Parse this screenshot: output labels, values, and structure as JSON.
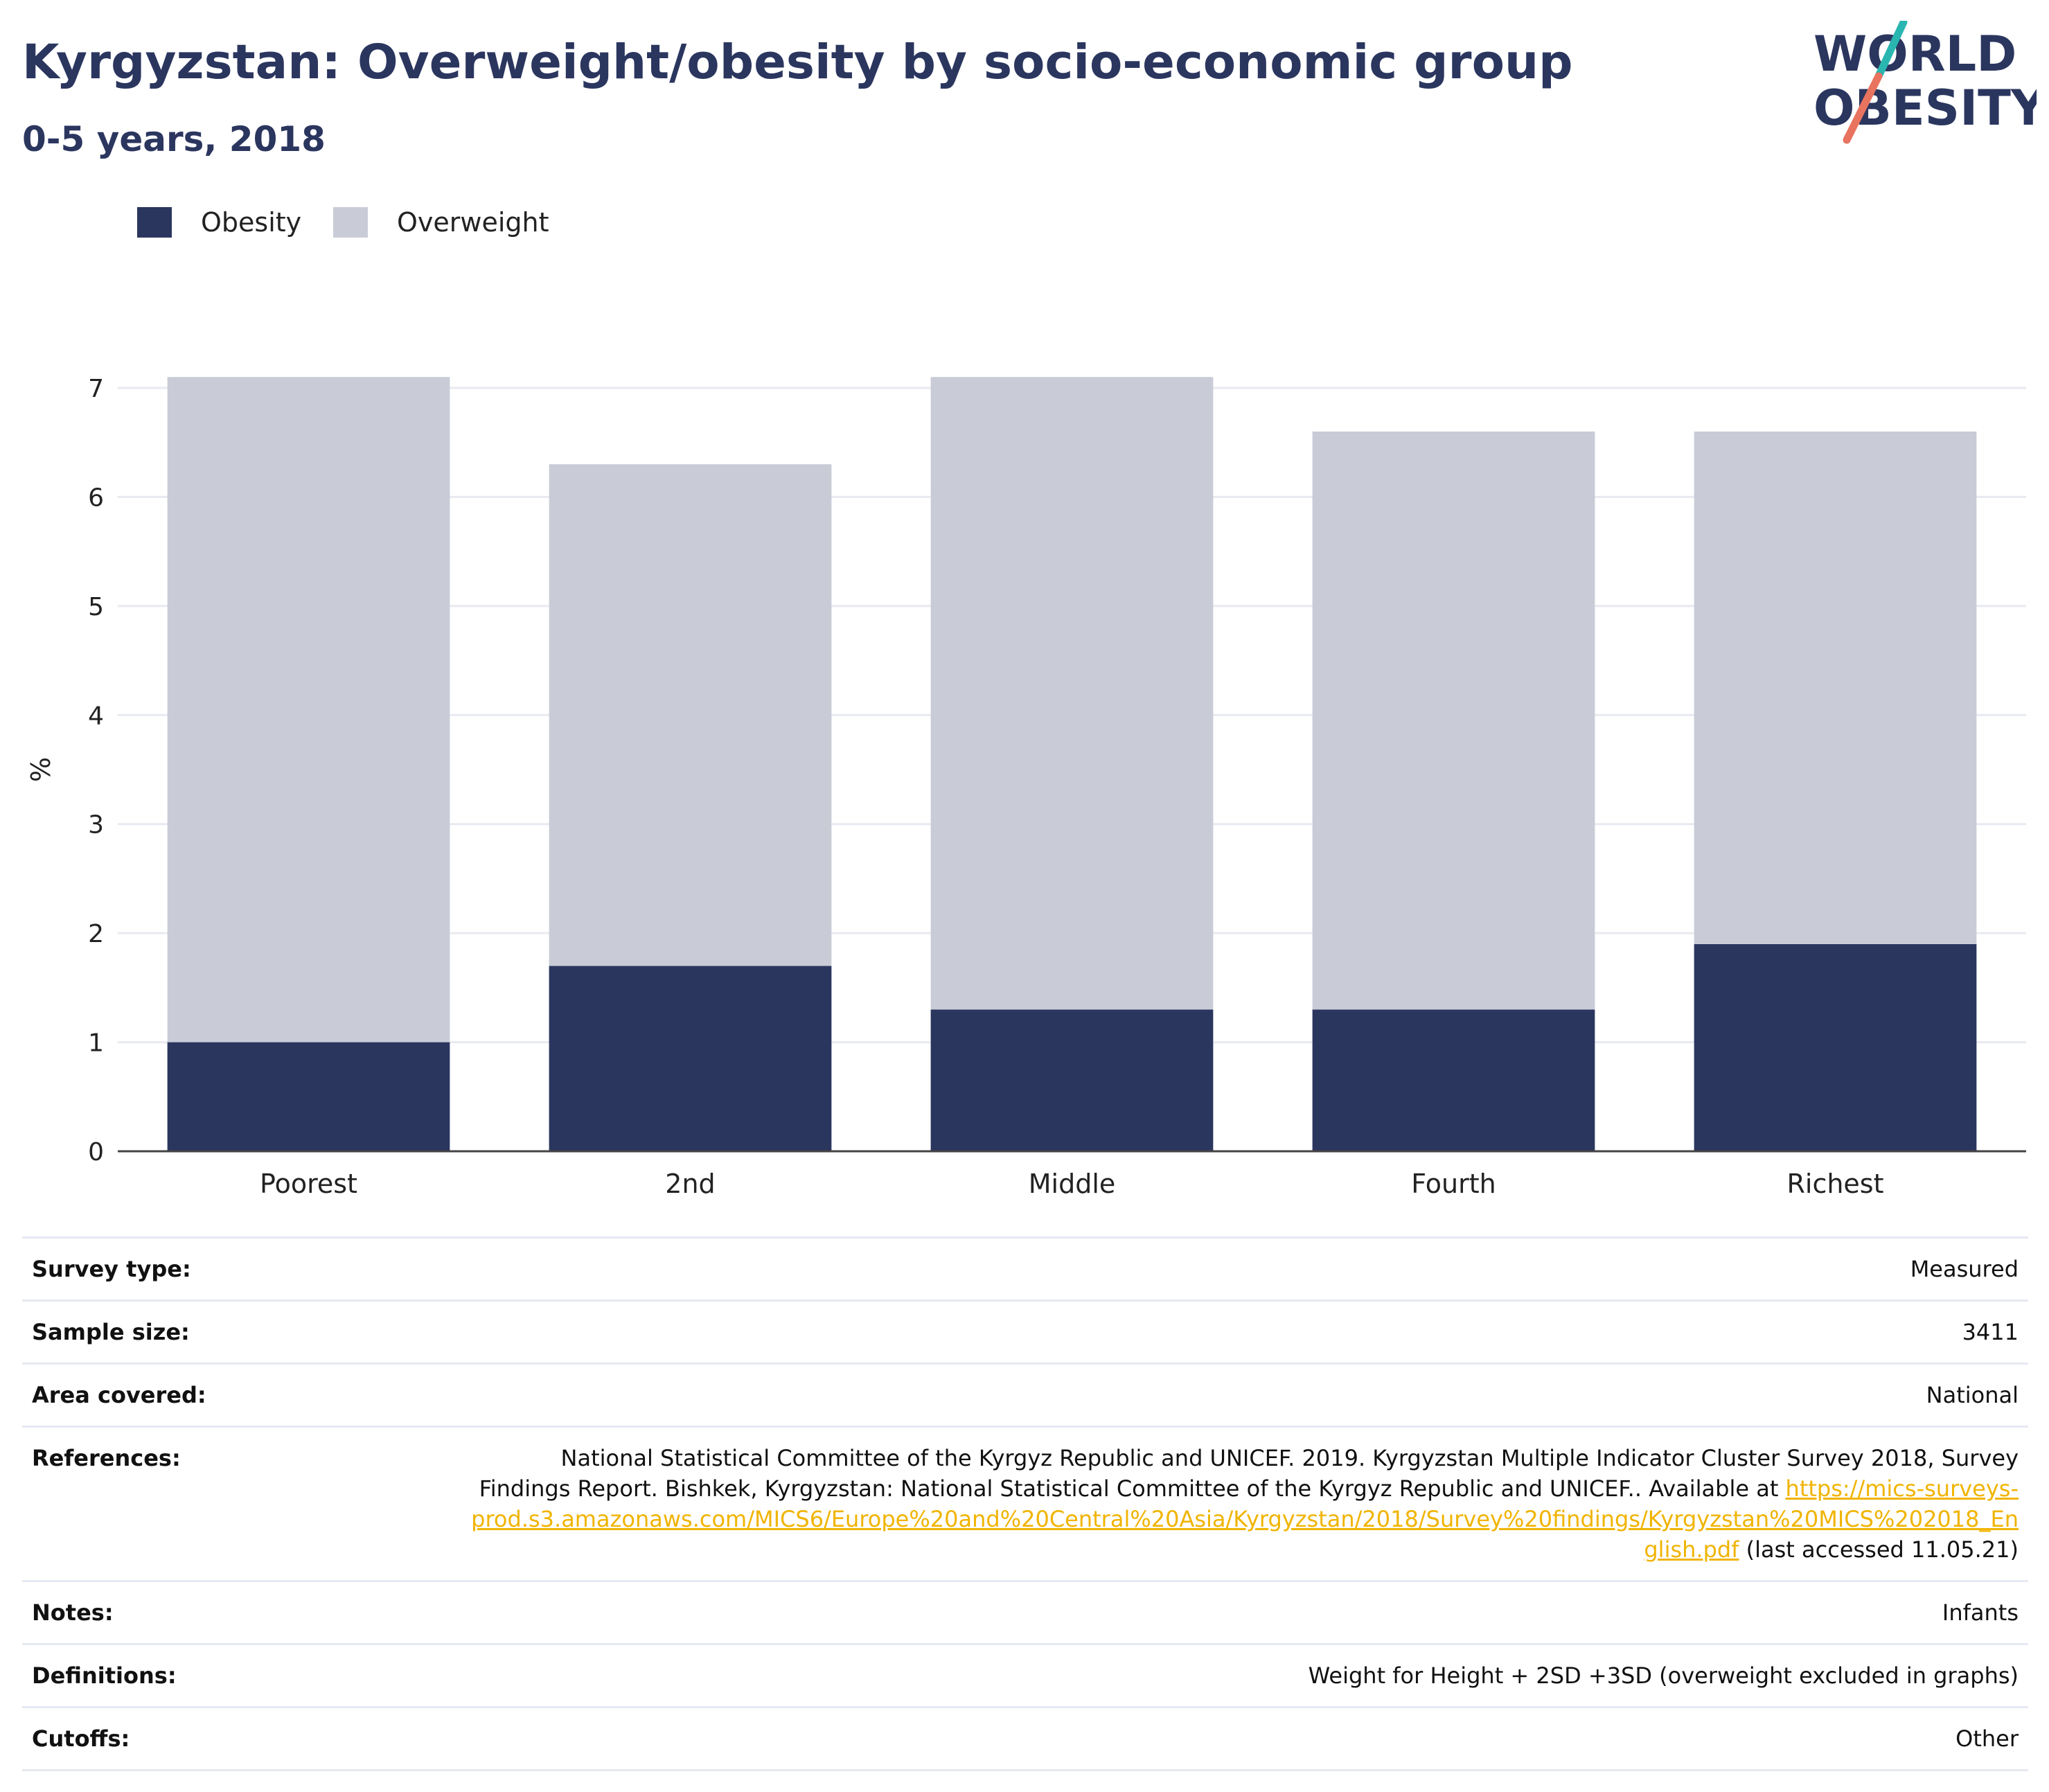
{
  "header": {
    "title": "Kyrgyzstan: Overweight/obesity by socio-economic group",
    "subtitle": "0-5 years, 2018"
  },
  "logo": {
    "line1": "WORLD",
    "line2": "OBESITY",
    "colors": {
      "text": "#2b365f",
      "teal": "#2ab6b0",
      "coral": "#e8735f"
    }
  },
  "legend": [
    {
      "label": "Obesity",
      "color": "#2b365f"
    },
    {
      "label": "Overweight",
      "color": "#c9ccd7"
    }
  ],
  "chart_data": {
    "type": "bar",
    "stacked": true,
    "categories": [
      "Poorest",
      "2nd",
      "Middle",
      "Fourth",
      "Richest"
    ],
    "series": [
      {
        "name": "Obesity",
        "color": "#2b365f",
        "values": [
          1.0,
          1.7,
          1.3,
          1.3,
          1.9
        ]
      },
      {
        "name": "Overweight",
        "color": "#c9ccd7",
        "values": [
          6.1,
          4.6,
          5.8,
          5.3,
          4.7
        ]
      }
    ],
    "ylabel": "%",
    "xlabel": "",
    "ylim": [
      0,
      7
    ],
    "yticks": [
      0,
      1,
      2,
      3,
      4,
      5,
      6,
      7
    ],
    "grid": true
  },
  "info": [
    {
      "key": "Survey type:",
      "value": "Measured"
    },
    {
      "key": "Sample size:",
      "value": "3411"
    },
    {
      "key": "Area covered:",
      "value": "National"
    },
    {
      "key": "References:",
      "value": "National Statistical Committee of the Kyrgyz Republic and UNICEF. 2019. Kyrgyzstan Multiple Indicator Cluster Survey 2018, Survey Findings Report. Bishkek, Kyrgyzstan: National Statistical Committee of the Kyrgyz Republic and UNICEF.. Available at ",
      "link": "https://mics-surveys-prod.s3.amazonaws.com/MICS6/Europe%20and%20Central%20Asia/Kyrgyzstan/2018/Survey%20findings/Kyrgyzstan%20MICS%202018_English.pdf",
      "suffix": " (last accessed 11.05.21)"
    },
    {
      "key": "Notes:",
      "value": "Infants"
    },
    {
      "key": "Definitions:",
      "value": "Weight for Height + 2SD +3SD (overweight excluded in graphs)"
    },
    {
      "key": "Cutoffs:",
      "value": "Other"
    }
  ]
}
